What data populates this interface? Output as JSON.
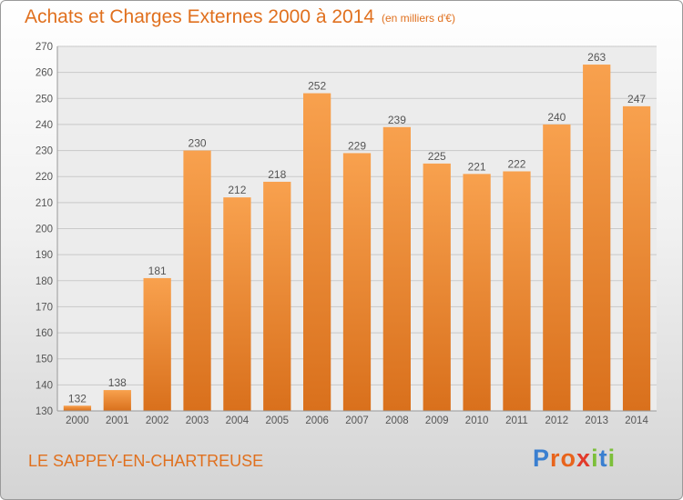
{
  "chart_data": {
    "type": "bar",
    "title": "Achats et Charges Externes 2000 à 2014",
    "subtitle": "(en milliers d'€)",
    "categories": [
      "2000",
      "2001",
      "2002",
      "2003",
      "2004",
      "2005",
      "2006",
      "2007",
      "2008",
      "2009",
      "2010",
      "2011",
      "2012",
      "2013",
      "2014"
    ],
    "values": [
      132,
      138,
      181,
      230,
      212,
      218,
      252,
      229,
      239,
      225,
      221,
      222,
      240,
      263,
      247
    ],
    "ylim": [
      130,
      270
    ],
    "yticks": [
      130,
      140,
      150,
      160,
      170,
      180,
      190,
      200,
      210,
      220,
      230,
      240,
      250,
      260,
      270
    ],
    "grid": true,
    "bar_color": "#f08a2c"
  },
  "footer": {
    "commune": "LE SAPPEY-EN-CHARTREUSE",
    "logo_letters": [
      "P",
      "r",
      "o",
      "x",
      "i",
      "t",
      "i"
    ],
    "logo_colors": [
      "#3a7fd0",
      "#e8641c",
      "#e8641c",
      "#e23a2b",
      "#7cbf3a",
      "#3a7fd0",
      "#7cbf3a"
    ]
  }
}
